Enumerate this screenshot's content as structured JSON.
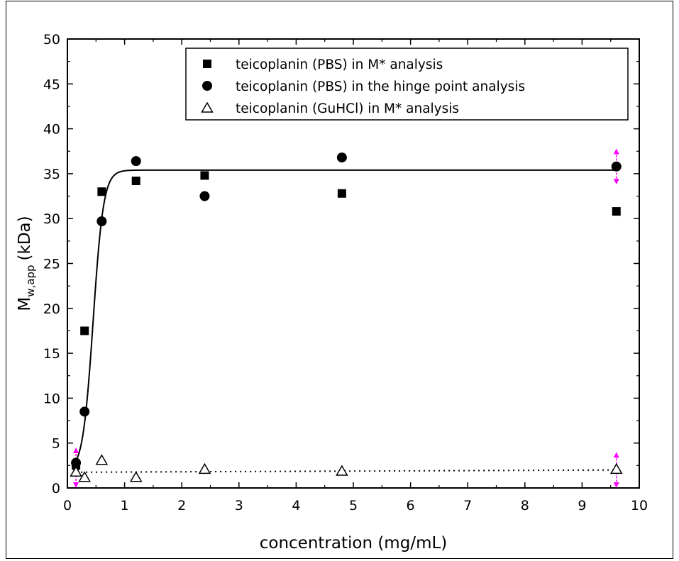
{
  "chart_data": {
    "type": "scatter",
    "xlabel": "concentration (mg/mL)",
    "ylabel": {
      "main": "M",
      "sub": "w,app",
      "unit": "(kDa)"
    },
    "xlim": [
      0,
      10
    ],
    "ylim": [
      0,
      50
    ],
    "xticks": [
      "0",
      "1",
      "2",
      "3",
      "4",
      "5",
      "6",
      "7",
      "8",
      "9",
      "10"
    ],
    "yticks": [
      "0",
      "5",
      "10",
      "15",
      "20",
      "25",
      "30",
      "35",
      "40",
      "45",
      "50"
    ],
    "grid": false,
    "legend_position": "top-right",
    "series": [
      {
        "name": "teicoplanin (PBS) in M* analysis",
        "marker": "filled-square",
        "color": "#000000",
        "x": [
          0.15,
          0.3,
          0.6,
          1.2,
          2.4,
          4.8,
          9.6
        ],
        "y": [
          2.5,
          17.5,
          33.0,
          34.2,
          34.8,
          32.8,
          30.8
        ]
      },
      {
        "name": "teicoplanin (PBS) in the hinge point analysis",
        "marker": "filled-circle",
        "color": "#000000",
        "x": [
          0.15,
          0.3,
          0.6,
          1.2,
          2.4,
          4.8,
          9.6
        ],
        "y": [
          2.8,
          8.5,
          29.7,
          36.4,
          32.5,
          36.8,
          35.8
        ]
      },
      {
        "name": "teicoplanin (GuHCl) in M* analysis",
        "marker": "open-triangle",
        "color": "#000000",
        "x": [
          0.15,
          0.3,
          0.6,
          1.2,
          2.4,
          4.8,
          9.6
        ],
        "y": [
          1.8,
          1.2,
          3.1,
          1.2,
          2.1,
          1.9,
          2.1
        ]
      }
    ],
    "fit_lines": [
      {
        "style": "solid",
        "plateau": 35.4,
        "baseline": 1.8,
        "midpoint": 0.45,
        "rate": 11
      },
      {
        "style": "dotted",
        "x": [
          0.15,
          9.6
        ],
        "y": [
          1.75,
          2.0
        ]
      }
    ],
    "error_markers": {
      "color": "#ff00ff",
      "points": [
        {
          "x": 0.15,
          "y": 2.5,
          "range": [
            0,
            4.5
          ]
        },
        {
          "x": 9.6,
          "y": 35.8,
          "range": [
            33.8,
            37.8
          ]
        },
        {
          "x": 9.6,
          "y": 2.1,
          "range": [
            0,
            4.0
          ]
        }
      ]
    }
  }
}
